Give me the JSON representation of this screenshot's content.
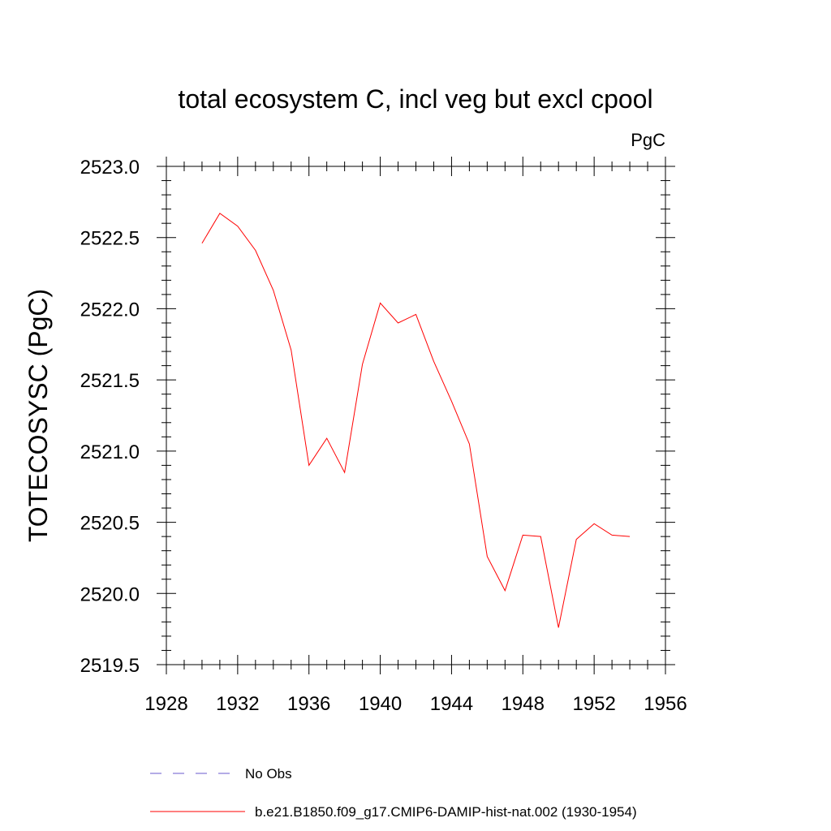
{
  "chart_data": {
    "type": "line",
    "title": "total ecosystem C, incl veg but excl cpool",
    "units": "PgC",
    "xlabel": "",
    "ylabel": "TOTECOSYSC  (PgC)",
    "xlim": [
      1928,
      1956
    ],
    "ylim": [
      2519.5,
      2523.0
    ],
    "xticks": [
      1928,
      1932,
      1936,
      1940,
      1944,
      1948,
      1952,
      1956
    ],
    "xtick_labels": [
      "1928",
      "1932",
      "1936",
      "1940",
      "1944",
      "1948",
      "1952",
      "1956"
    ],
    "yticks": [
      2519.5,
      2520.0,
      2520.5,
      2521.0,
      2521.5,
      2522.0,
      2522.5,
      2523.0
    ],
    "ytick_labels": [
      "2519.5",
      "2520.0",
      "2520.5",
      "2521.0",
      "2521.5",
      "2522.0",
      "2522.5",
      "2523.0"
    ],
    "grid": false,
    "legend_position": "bottom",
    "series": [
      {
        "name": "No Obs",
        "color": "#6a5acd",
        "dash": "dashed",
        "x": [],
        "y": []
      },
      {
        "name": "b.e21.B1850.f09_g17.CMIP6-DAMIP-hist-nat.002 (1930-1954)",
        "color": "#ff0000",
        "dash": "solid",
        "x": [
          1930,
          1931,
          1932,
          1933,
          1934,
          1935,
          1936,
          1937,
          1938,
          1939,
          1940,
          1941,
          1942,
          1943,
          1944,
          1945,
          1946,
          1947,
          1948,
          1949,
          1950,
          1951,
          1952,
          1953,
          1954
        ],
        "y": [
          2522.46,
          2522.67,
          2522.58,
          2522.41,
          2522.13,
          2521.71,
          2520.9,
          2521.09,
          2520.85,
          2521.61,
          2522.04,
          2521.9,
          2521.96,
          2521.63,
          2521.35,
          2521.05,
          2520.26,
          2520.02,
          2520.41,
          2520.4,
          2519.76,
          2520.38,
          2520.49,
          2520.41,
          2520.4
        ]
      }
    ]
  }
}
